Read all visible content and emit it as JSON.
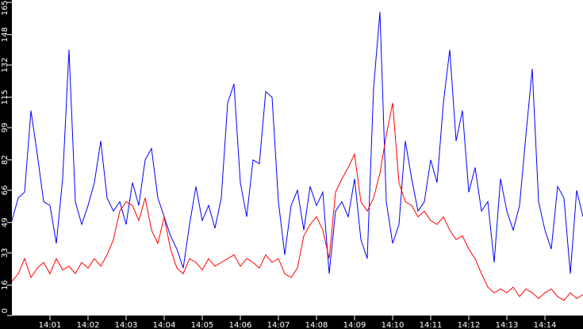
{
  "chart_data": {
    "type": "line",
    "title": "",
    "xlabel": "",
    "ylabel": "",
    "ylim": [
      0,
      165
    ],
    "xlim": [
      "14:00:00",
      "14:15:00"
    ],
    "grid": false,
    "yticks": [
      "0",
      "16",
      "33",
      "49",
      "66",
      "82",
      "99",
      "115",
      "132",
      "148",
      "165"
    ],
    "xticks": [
      "14:01",
      "14:02",
      "14:03",
      "14:04",
      "14:05",
      "14:06",
      "14:07",
      "14:08",
      "14:09",
      "14:10",
      "14:11",
      "14:12",
      "14:13",
      "14:14"
    ],
    "x": [
      "14:00:00",
      "14:00:10",
      "14:00:20",
      "14:00:30",
      "14:00:40",
      "14:00:50",
      "14:01:00",
      "14:01:10",
      "14:01:20",
      "14:01:30",
      "14:01:40",
      "14:01:50",
      "14:02:00",
      "14:02:10",
      "14:02:20",
      "14:02:30",
      "14:02:40",
      "14:02:50",
      "14:03:00",
      "14:03:10",
      "14:03:20",
      "14:03:30",
      "14:03:40",
      "14:03:50",
      "14:04:00",
      "14:04:10",
      "14:04:20",
      "14:04:30",
      "14:04:40",
      "14:04:50",
      "14:05:00",
      "14:05:10",
      "14:05:20",
      "14:05:30",
      "14:05:40",
      "14:05:50",
      "14:06:00",
      "14:06:10",
      "14:06:20",
      "14:06:30",
      "14:06:40",
      "14:06:50",
      "14:07:00",
      "14:07:10",
      "14:07:20",
      "14:07:30",
      "14:07:40",
      "14:07:50",
      "14:08:00",
      "14:08:10",
      "14:08:20",
      "14:08:30",
      "14:08:40",
      "14:08:50",
      "14:09:00",
      "14:09:10",
      "14:09:20",
      "14:09:30",
      "14:09:40",
      "14:09:50",
      "14:10:00",
      "14:10:10",
      "14:10:20",
      "14:10:30",
      "14:10:40",
      "14:10:50",
      "14:11:00",
      "14:11:10",
      "14:11:20",
      "14:11:30",
      "14:11:40",
      "14:11:50",
      "14:12:00",
      "14:12:10",
      "14:12:20",
      "14:12:30",
      "14:12:40",
      "14:12:50",
      "14:13:00",
      "14:13:10",
      "14:13:20",
      "14:13:30",
      "14:13:40",
      "14:13:50",
      "14:14:00",
      "14:14:10",
      "14:14:20",
      "14:14:30",
      "14:14:40",
      "14:14:50",
      "14:15:00"
    ],
    "series": [
      {
        "color": "#0000ff",
        "values": [
          50,
          62,
          65,
          108,
          85,
          60,
          58,
          38,
          72,
          140,
          60,
          48,
          58,
          70,
          92,
          62,
          55,
          60,
          48,
          70,
          58,
          82,
          88,
          62,
          52,
          42,
          35,
          25,
          48,
          68,
          50,
          58,
          46,
          62,
          112,
          122,
          70,
          52,
          82,
          80,
          118,
          115,
          60,
          32,
          58,
          66,
          45,
          68,
          58,
          65,
          22,
          55,
          60,
          52,
          72,
          40,
          30,
          120,
          160,
          60,
          38,
          48,
          92,
          72,
          55,
          60,
          82,
          70,
          112,
          140,
          92,
          108,
          65,
          78,
          55,
          60,
          28,
          72,
          55,
          45,
          58,
          95,
          130,
          60,
          45,
          35,
          68,
          62,
          22,
          66,
          52
        ]
      },
      {
        "color": "#ff0000",
        "values": [
          18,
          22,
          30,
          20,
          25,
          28,
          22,
          30,
          24,
          26,
          22,
          28,
          25,
          30,
          26,
          32,
          40,
          55,
          60,
          58,
          50,
          62,
          45,
          38,
          52,
          35,
          25,
          22,
          30,
          28,
          24,
          30,
          26,
          28,
          30,
          32,
          26,
          30,
          28,
          25,
          32,
          28,
          30,
          22,
          20,
          25,
          42,
          48,
          52,
          45,
          30,
          65,
          72,
          78,
          85,
          60,
          55,
          62,
          75,
          95,
          112,
          70,
          60,
          58,
          52,
          55,
          50,
          48,
          52,
          45,
          40,
          42,
          35,
          30,
          22,
          15,
          12,
          14,
          12,
          15,
          10,
          14,
          12,
          9,
          12,
          14,
          10,
          8,
          12,
          9,
          11
        ]
      }
    ]
  }
}
